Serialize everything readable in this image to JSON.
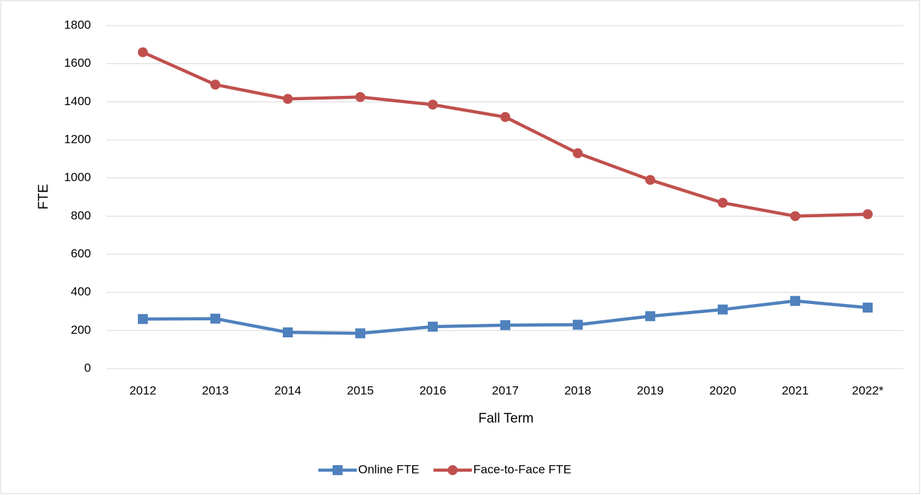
{
  "chart_data": {
    "type": "line",
    "x_label": "Fall Term",
    "y_label": "FTE",
    "categories": [
      "2012",
      "2013",
      "2014",
      "2015",
      "2016",
      "2017",
      "2018",
      "2019",
      "2020",
      "2021",
      "2022*"
    ],
    "series": [
      {
        "name": "Online FTE",
        "color": "#4f81bd",
        "marker": "square",
        "values": [
          260,
          262,
          190,
          185,
          220,
          228,
          230,
          275,
          310,
          355,
          320
        ]
      },
      {
        "name": "Face-to-Face FTE",
        "color": "#c0504d",
        "marker": "circle",
        "values": [
          1660,
          1490,
          1415,
          1425,
          1385,
          1320,
          1130,
          990,
          870,
          800,
          810
        ]
      }
    ],
    "ylim": [
      0,
      1800
    ],
    "yticks": [
      0,
      200,
      400,
      600,
      800,
      1000,
      1200,
      1400,
      1600,
      1800
    ],
    "grid": true,
    "legend": "bottom"
  }
}
